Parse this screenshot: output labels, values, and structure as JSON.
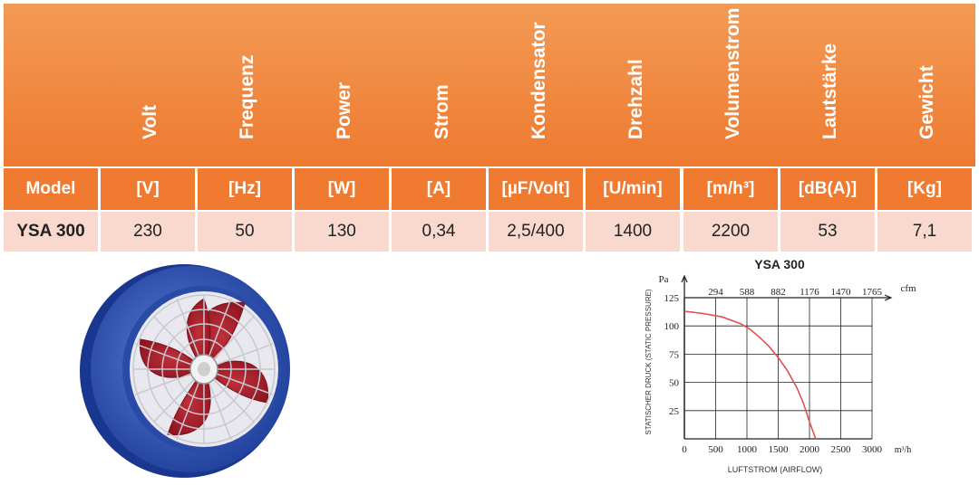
{
  "table": {
    "headers": [
      "Volt",
      "Frequenz",
      "Power",
      "Strom",
      "Kondensator",
      "Drehzahl",
      "Volumenstrom",
      "Lautstärke",
      "Gewicht"
    ],
    "units": [
      "Model",
      "[V]",
      "[Hz]",
      "[W]",
      "[A]",
      "[µF/Volt]",
      "[U/min]",
      "[m/h³]",
      "[dB(A)]",
      "[Kg]"
    ],
    "row": [
      "YSA 300",
      "230",
      "50",
      "130",
      "0,34",
      "2,5/400",
      "1400",
      "2200",
      "53",
      "7,1"
    ]
  },
  "colors": {
    "header": "#ee7a30",
    "data_row": "#f9d9ce",
    "curve": "#e05050"
  },
  "product_image": "axial-fan-icon",
  "chart_data": {
    "type": "line",
    "title": "YSA 300",
    "xlabel": "LUFTSTROM (AIRFLOW)",
    "x_unit": "m³/h",
    "ylabel": "STATISCHER DRUCK (STATIC PRESSURE)",
    "y_unit": "Pa",
    "x_ticks": [
      "0",
      "500",
      "1000",
      "1500",
      "2000",
      "2500",
      "3000"
    ],
    "y_ticks": [
      "25",
      "50",
      "75",
      "100",
      "125"
    ],
    "top_axis_unit": "cfm",
    "top_ticks": [
      "294",
      "588",
      "882",
      "1176",
      "1470",
      "1765"
    ],
    "xlim": [
      0,
      3000
    ],
    "ylim": [
      0,
      125
    ],
    "grid": true,
    "x": [
      0,
      300,
      600,
      900,
      1050,
      1200,
      1350,
      1500,
      1650,
      1800,
      1900,
      2000,
      2100
    ],
    "y": [
      113,
      111,
      108,
      102,
      97,
      90,
      82,
      72,
      60,
      45,
      32,
      15,
      0
    ]
  }
}
